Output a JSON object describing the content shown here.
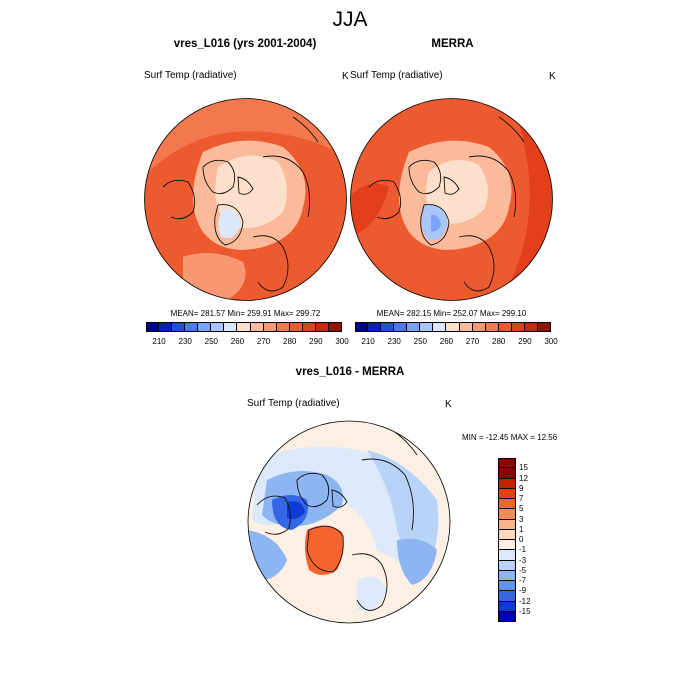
{
  "title": "JJA",
  "panels": [
    {
      "id": "model",
      "title": "vres_L016 (yrs 2001-2004)",
      "var_label": "Surf Temp (radiative)",
      "unit": "K",
      "stats": "MEAN= 281.57  Min= 259.91  Max= 299.72"
    },
    {
      "id": "merra",
      "title": "MERRA",
      "var_label": "Surf Temp (radiative)",
      "unit": "K",
      "stats": "MEAN= 282.15  Min= 252.07  Max= 299.10"
    },
    {
      "id": "diff",
      "title": "vres_L016 - MERRA",
      "var_label": "Surf Temp (radiative)",
      "unit": "K",
      "stats": "MIN = -12.45 MAX =  12.56"
    }
  ],
  "abs_colorbar": {
    "colors": [
      "#00008f",
      "#0a1ec8",
      "#1f4fe6",
      "#4a79f0",
      "#7aa2f5",
      "#a9c6fa",
      "#dbe7fb",
      "#fde0cc",
      "#fbbb9a",
      "#f79872",
      "#f3784e",
      "#ee5a30",
      "#e23f1a",
      "#c52a0d",
      "#8f1203"
    ],
    "ticks": [
      "210",
      "230",
      "250",
      "260",
      "270",
      "280",
      "290",
      "300"
    ]
  },
  "diff_colorbar": {
    "colors": [
      "#8f0000",
      "#c72000",
      "#e8410e",
      "#f4642f",
      "#f68b5a",
      "#f9b48c",
      "#fcd8be",
      "#fbf0e3",
      "#dce9fb",
      "#b8d3f8",
      "#8db5f2",
      "#6091ec",
      "#3566e3",
      "#0f3ad6",
      "#0000a8"
    ],
    "ticks": [
      "15",
      "12",
      "9",
      "7",
      "5",
      "3",
      "1",
      "0",
      "-1",
      "-3",
      "-5",
      "-7",
      "-9",
      "-12",
      "-15"
    ]
  }
}
